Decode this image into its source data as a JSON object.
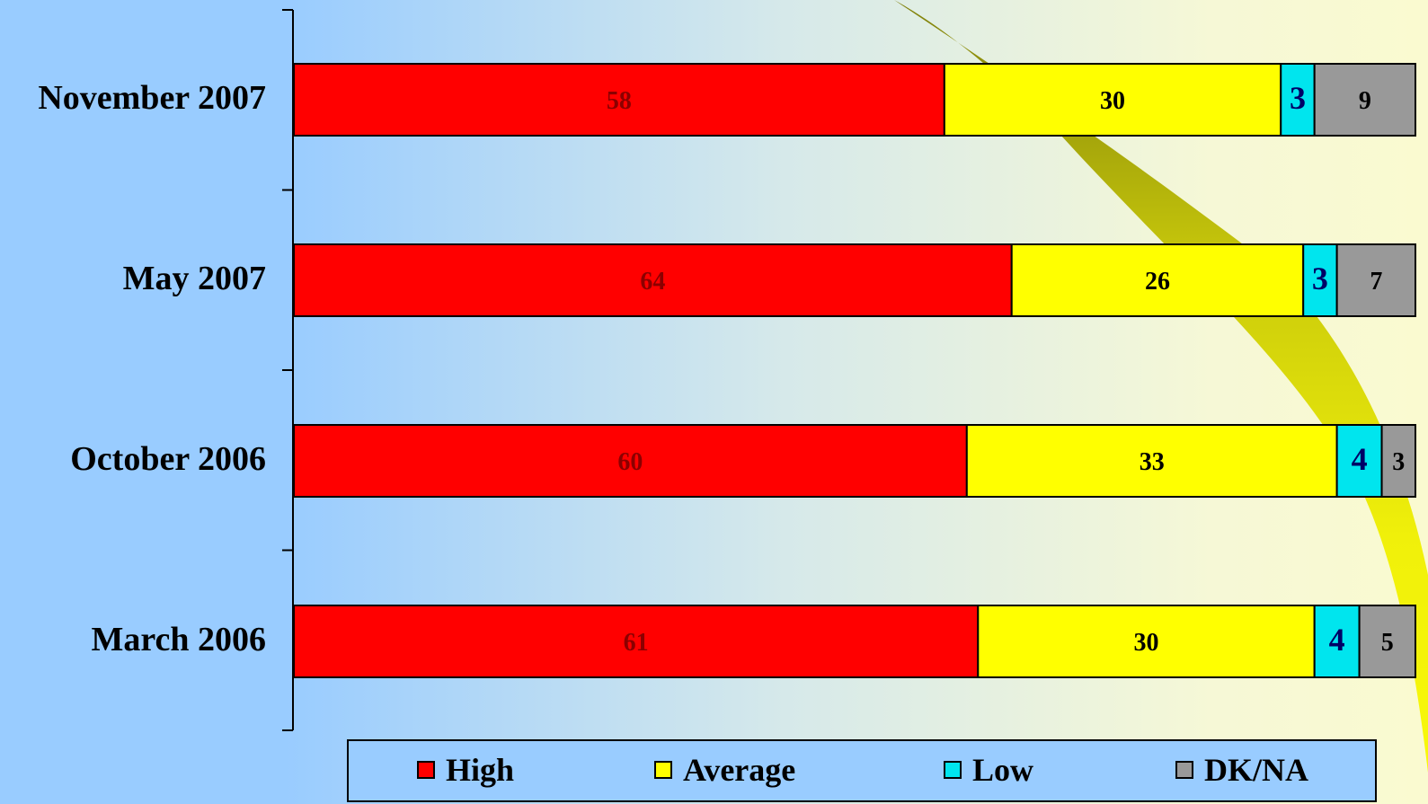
{
  "colors": {
    "High": "#ff0000",
    "Average": "#ffff00",
    "Low": "#00e5ee",
    "DK/NA": "#999999"
  },
  "chart_data": {
    "type": "bar",
    "orientation": "horizontal",
    "stacked": true,
    "categories": [
      "November 2007",
      "May 2007",
      "October 2006",
      "March 2006"
    ],
    "series": [
      {
        "name": "High",
        "values": [
          58,
          64,
          60,
          61
        ]
      },
      {
        "name": "Average",
        "values": [
          30,
          26,
          33,
          30
        ]
      },
      {
        "name": "Low",
        "values": [
          3,
          3,
          4,
          4
        ]
      },
      {
        "name": "DK/NA",
        "values": [
          9,
          7,
          3,
          5
        ]
      }
    ],
    "xlim": [
      0,
      100
    ],
    "legend_position": "bottom",
    "grid": false
  },
  "legend": {
    "items": [
      "High",
      "Average",
      "Low",
      "DK/NA"
    ]
  }
}
